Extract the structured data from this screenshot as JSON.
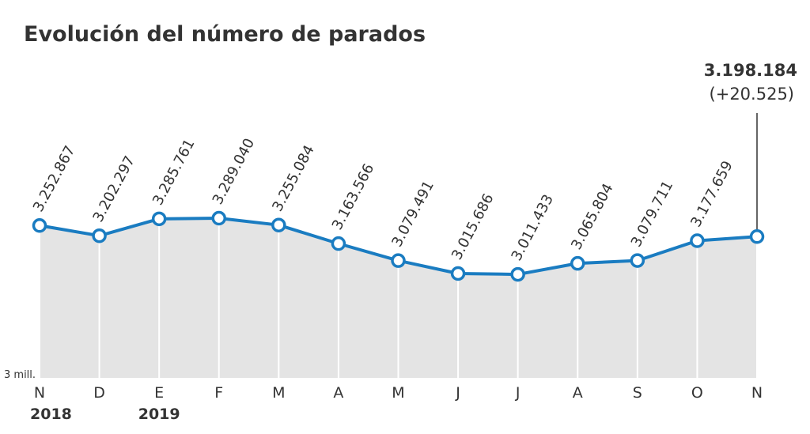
{
  "chart_data": {
    "type": "line",
    "title": "Evolución del número de parados",
    "categories": [
      "N",
      "D",
      "E",
      "F",
      "M",
      "A",
      "M",
      "J",
      "J",
      "A",
      "S",
      "O",
      "N"
    ],
    "years": [
      "2018",
      null,
      "2019",
      null,
      null,
      null,
      null,
      null,
      null,
      null,
      null,
      null,
      null
    ],
    "series": [
      {
        "name": "Parados",
        "color": "#1a7cc1",
        "values": [
          3252867,
          3202297,
          3285761,
          3289040,
          3255084,
          3163566,
          3079491,
          3015686,
          3011433,
          3065804,
          3079711,
          3177659,
          3198184
        ],
        "value_labels": [
          "3.252.867",
          "3.202.297",
          "3.285.761",
          "3.289.040",
          "3.255.084",
          "3.163.566",
          "3.079.491",
          "3.015.686",
          "3.011.433",
          "3.065.804",
          "3.079.711",
          "3.177.659",
          "3.198.184"
        ]
      }
    ],
    "last_change": "(+20.525)",
    "baseline_label": "3 mill.",
    "ylim": [
      2500000,
      3500000
    ],
    "area_color": "#e4e4e4"
  }
}
